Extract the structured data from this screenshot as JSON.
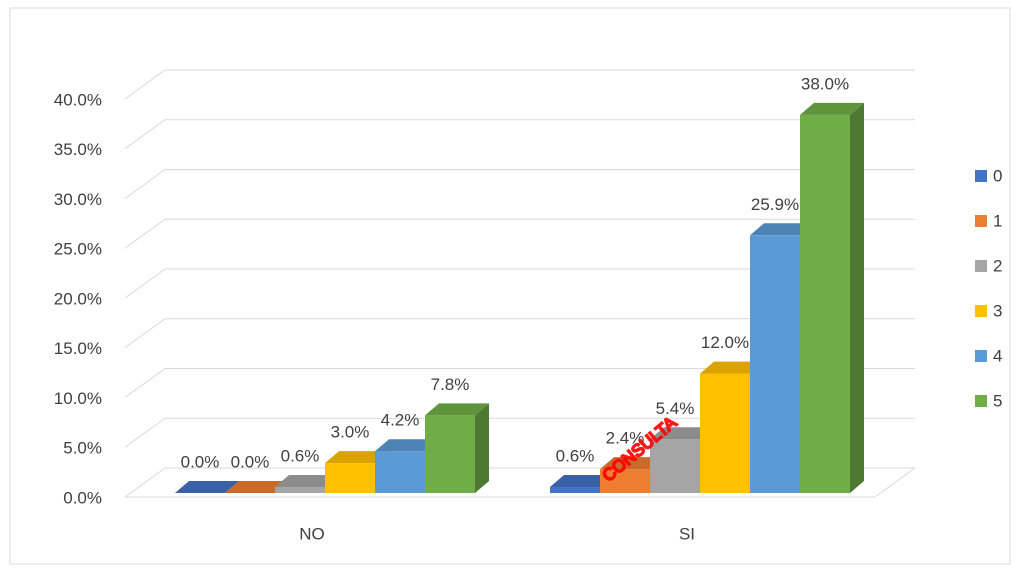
{
  "chart_data": {
    "type": "bar3d",
    "categories": [
      "NO",
      "SI"
    ],
    "series": [
      {
        "name": "0",
        "color": "#4472c4",
        "values": [
          0.0,
          0.6
        ],
        "value_labels": [
          "0.0%",
          "0.6%"
        ]
      },
      {
        "name": "1",
        "color": "#ed7d31",
        "values": [
          0.0,
          2.4
        ],
        "value_labels": [
          "0.0%",
          "2.4%"
        ]
      },
      {
        "name": "2",
        "color": "#a5a5a5",
        "values": [
          0.6,
          5.4
        ],
        "value_labels": [
          "0.6%",
          "5.4%"
        ]
      },
      {
        "name": "3",
        "color": "#ffc000",
        "values": [
          3.0,
          12.0
        ],
        "value_labels": [
          "3.0%",
          "12.0%"
        ]
      },
      {
        "name": "4",
        "color": "#5b9bd5",
        "values": [
          4.2,
          25.9
        ],
        "value_labels": [
          "4.2%",
          "25.9%"
        ]
      },
      {
        "name": "5",
        "color": "#70ad47",
        "values": [
          7.8,
          38.0
        ],
        "value_labels": [
          "7.8%",
          "38.0%"
        ]
      }
    ],
    "ylim": [
      0,
      40
    ],
    "yticks": [
      {
        "value": 0,
        "label": "0.0%"
      },
      {
        "value": 5,
        "label": "5.0%"
      },
      {
        "value": 10,
        "label": "10.0%"
      },
      {
        "value": 15,
        "label": "15.0%"
      },
      {
        "value": 20,
        "label": "20.0%"
      },
      {
        "value": 25,
        "label": "25.0%"
      },
      {
        "value": 30,
        "label": "30.0%"
      },
      {
        "value": 35,
        "label": "35.0%"
      },
      {
        "value": 40,
        "label": "40.0%"
      }
    ],
    "grid": true,
    "legend": "right",
    "watermark": "CONSULTA"
  }
}
